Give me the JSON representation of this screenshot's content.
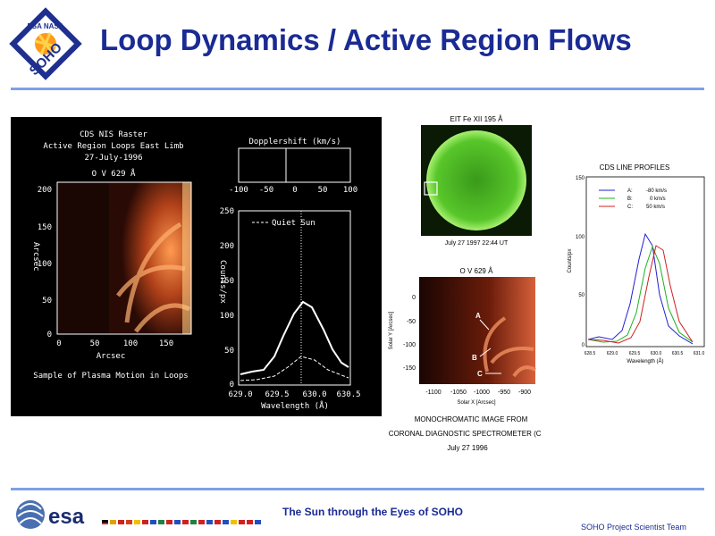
{
  "slide": {
    "title": "Loop Dynamics / Active Region Flows",
    "footer_center": "The Sun through the Eyes of SOHO",
    "footer_right": "SOHO Project Scientist Team",
    "logo_text": "SOHO",
    "logo_subtext": "ESA NASA",
    "esa_text": "esa"
  },
  "left_panel": {
    "header": [
      "CDS NIS Raster",
      "Active Region Loops East Limb",
      "27-July-1996"
    ],
    "image_label": "O V 629 Å",
    "y_axis_label": "Arcsec",
    "y_ticks": [
      "200",
      "150",
      "100",
      "50",
      "0"
    ],
    "x_ticks": [
      "0",
      "50",
      "100",
      "150"
    ],
    "x_axis_label": "Arcsec",
    "caption": "Sample of Plasma Motion in Loops",
    "doppler": {
      "title": "Dopplershift (km/s)",
      "ticks": [
        "-100",
        "-50",
        "0",
        "50",
        "100"
      ]
    },
    "profile": {
      "legend": "Quiet Sun",
      "y_label": "Counts/px",
      "y_ticks": [
        "250",
        "200",
        "150",
        "100",
        "50",
        "0"
      ],
      "x_ticks": [
        "629.0",
        "629.5",
        "630.0",
        "630.5"
      ],
      "x_label": "Wavelength (Å)"
    }
  },
  "eit_panel": {
    "title": "EIT Fe XII 195 Å",
    "caption": "July 27 1997  22:44 UT"
  },
  "ov_panel": {
    "title": "O V 629 Å",
    "y_label": "Solar Y [Arcsec]",
    "y_ticks": [
      "0",
      "-50",
      "-100",
      "-150"
    ],
    "x_ticks": [
      "-1100",
      "-1050",
      "-1000",
      "-950",
      "-900"
    ],
    "x_label": "Solar X [Arcsec]",
    "markers": [
      "A",
      "B",
      "C"
    ],
    "caption_lines": [
      "MONOCHROMATIC IMAGE FROM",
      "CORONAL DIAGNOSTIC SPECTROMETER (CDS)",
      "July 27 1996"
    ]
  },
  "line_profiles": {
    "title": "CDS LINE PROFILES",
    "y_label": "Counts/px",
    "x_label": "Wavelength (Å)",
    "y_ticks": [
      "150",
      "100",
      "50",
      "0"
    ],
    "x_ticks": [
      "628.5",
      "629.0",
      "629.5",
      "630.0",
      "630.5",
      "631.0"
    ],
    "legend": [
      {
        "label": "A:",
        "value": "-80 km/s",
        "color": "#2020d0"
      },
      {
        "label": "B:",
        "value": "0 km/s",
        "color": "#20b020"
      },
      {
        "label": "C:",
        "value": "50 km/s",
        "color": "#d02020"
      }
    ]
  }
}
